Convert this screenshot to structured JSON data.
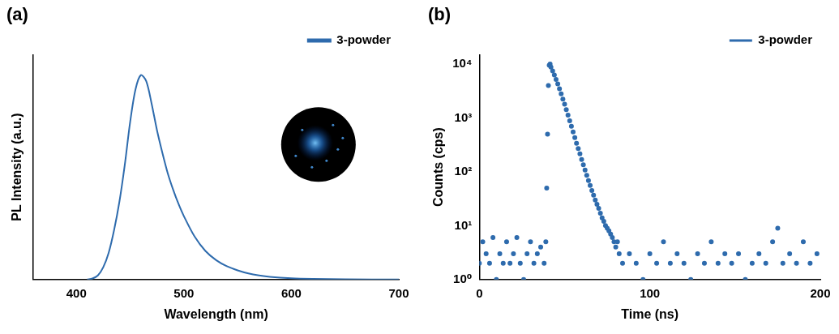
{
  "chart_data": [
    {
      "type": "line",
      "title": "(a)",
      "x_label": "Wavelength (nm)",
      "y_label": "PL Intensity (a.u.)",
      "xlim": [
        360,
        700
      ],
      "xticks": [
        400,
        500,
        600,
        700
      ],
      "ylim": [
        0,
        1.1
      ],
      "yticks": [],
      "tick_labels": "x",
      "grid": false,
      "legend": "upper right",
      "series": [
        {
          "name": "3-powder",
          "color": "#2e6bad",
          "marker": "none",
          "line_style": "solid",
          "x": [
            410,
            415,
            420,
            425,
            430,
            435,
            440,
            445,
            450,
            455,
            460,
            465,
            470,
            475,
            480,
            485,
            490,
            495,
            500,
            510,
            520,
            530,
            540,
            550,
            560,
            570,
            580,
            600,
            620,
            650,
            700
          ],
          "values": [
            0,
            0.005,
            0.02,
            0.06,
            0.13,
            0.24,
            0.38,
            0.56,
            0.77,
            0.93,
            1.0,
            0.97,
            0.86,
            0.73,
            0.62,
            0.52,
            0.44,
            0.37,
            0.31,
            0.21,
            0.14,
            0.095,
            0.065,
            0.045,
            0.03,
            0.02,
            0.013,
            0.006,
            0.003,
            0.001,
            0
          ]
        }
      ]
    },
    {
      "type": "scatter",
      "title": "(b)",
      "x_label": "Time (ns)",
      "y_label": "Counts (cps)",
      "xlim": [
        0,
        200
      ],
      "xticks": [
        0,
        100,
        200
      ],
      "log": "y",
      "ylim": [
        1,
        15000
      ],
      "yticks": [
        {
          "value": 1,
          "label": "10⁰"
        },
        {
          "value": 10,
          "label": "10¹"
        },
        {
          "value": 100,
          "label": "10²"
        },
        {
          "value": 1000,
          "label": "10³"
        },
        {
          "value": 10000,
          "label": "10⁴"
        }
      ],
      "grid": false,
      "legend": "upper right",
      "series": [
        {
          "name": "3-powder",
          "color": "#2e6bad",
          "marker": "circle",
          "x": [
            0,
            2,
            4,
            6,
            8,
            10,
            12,
            14,
            16,
            18,
            20,
            22,
            24,
            26,
            28,
            30,
            32,
            34,
            36,
            38,
            39,
            39.5,
            40,
            40.5,
            41,
            41.5,
            42,
            43,
            44,
            45,
            46,
            47,
            48,
            49,
            50,
            51,
            52,
            53,
            54,
            55,
            56,
            57,
            58,
            59,
            60,
            61,
            62,
            63,
            64,
            65,
            66,
            67,
            68,
            69,
            70,
            71,
            72,
            73,
            74,
            75,
            76,
            77,
            78,
            79,
            80,
            81,
            82,
            84,
            88,
            92,
            96,
            100,
            104,
            108,
            112,
            116,
            120,
            124,
            128,
            132,
            136,
            140,
            144,
            148,
            152,
            156,
            160,
            164,
            168,
            172,
            175,
            178,
            182,
            186,
            190,
            194,
            198
          ],
          "values": [
            2,
            5,
            3,
            2,
            6,
            1,
            3,
            2,
            5,
            2,
            3,
            6,
            2,
            1,
            3,
            5,
            2,
            3,
            4,
            2,
            5,
            50,
            500,
            4000,
            9500,
            10000,
            8800,
            7500,
            6300,
            5200,
            4300,
            3500,
            2800,
            2250,
            1800,
            1430,
            1130,
            890,
            700,
            550,
            430,
            340,
            270,
            215,
            170,
            135,
            108,
            86,
            69,
            56,
            45,
            37,
            30,
            25,
            21,
            17,
            14,
            12,
            10,
            9,
            8,
            7,
            6,
            5,
            4,
            5,
            3,
            2,
            3,
            2,
            1,
            3,
            2,
            5,
            2,
            3,
            2,
            1,
            3,
            2,
            5,
            2,
            3,
            2,
            3,
            1,
            2,
            3,
            2,
            5,
            9,
            2,
            3,
            2,
            5,
            2,
            3
          ]
        }
      ]
    }
  ]
}
